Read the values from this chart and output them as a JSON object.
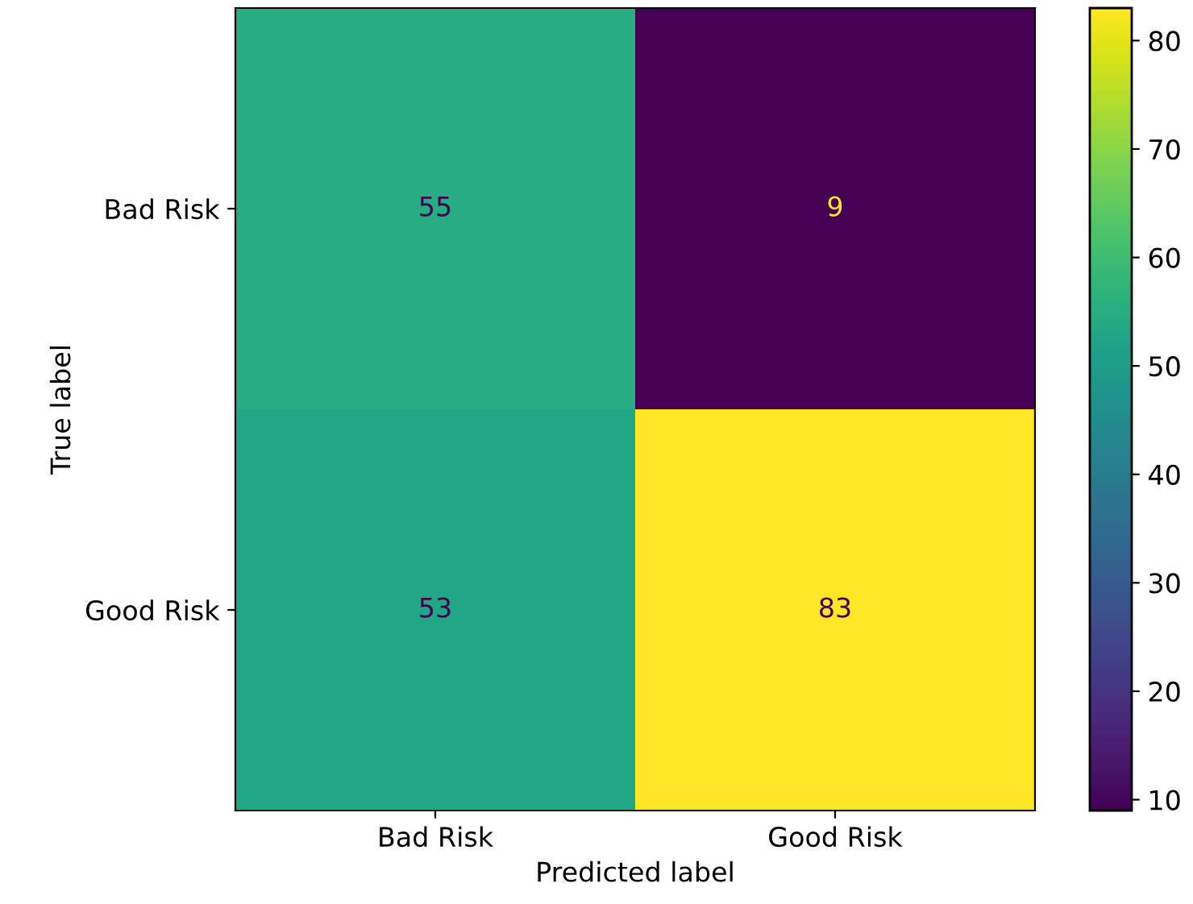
{
  "chart_data": {
    "type": "heatmap",
    "xlabel": "Predicted label",
    "ylabel": "True label",
    "categories": [
      "Bad Risk",
      "Good Risk"
    ],
    "y_categories": [
      "Bad Risk",
      "Good Risk"
    ],
    "cells": [
      [
        55,
        9
      ],
      [
        53,
        83
      ]
    ],
    "data_labels": true,
    "clim": [
      9,
      83
    ],
    "cticks": [
      10,
      20,
      30,
      40,
      50,
      60,
      70,
      80
    ],
    "grid": false
  }
}
